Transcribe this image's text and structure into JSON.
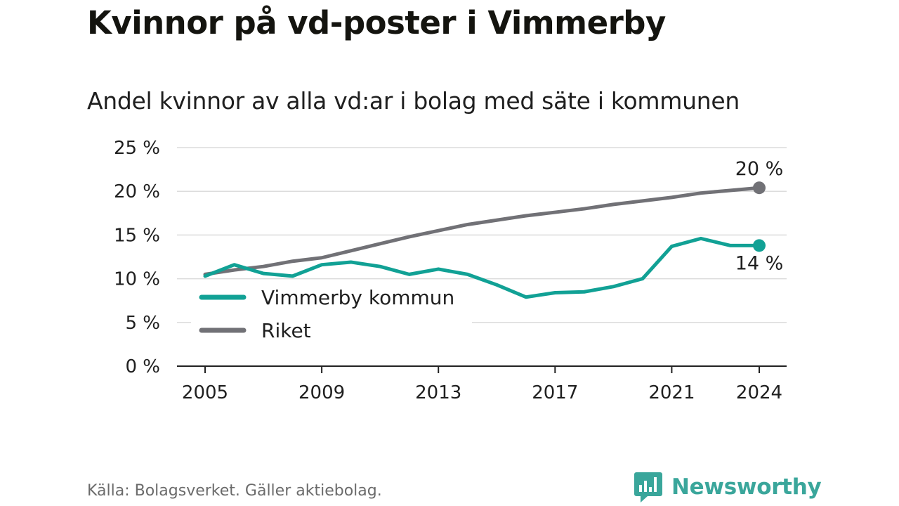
{
  "header": {
    "title": "Kvinnor på vd-poster i Vimmerby",
    "subtitle": "Andel kvinnor av alla vd:ar i bolag med säte i kommunen"
  },
  "footer": {
    "source": "Källa: Bolagsverket. Gäller aktiebolag.",
    "brand": "Newsworthy",
    "brand_icon": "bar-chart-icon",
    "brand_color": "#3aa69b"
  },
  "chart_data": {
    "type": "line",
    "x": [
      2005,
      2006,
      2007,
      2008,
      2009,
      2010,
      2011,
      2012,
      2013,
      2014,
      2015,
      2016,
      2017,
      2018,
      2019,
      2020,
      2021,
      2022,
      2023,
      2024
    ],
    "xticks": [
      2005,
      2009,
      2013,
      2017,
      2021,
      2024
    ],
    "xtick_labels": [
      "2005",
      "2009",
      "2013",
      "2017",
      "2021",
      "2024"
    ],
    "ylim": [
      0,
      25
    ],
    "yticks": [
      0,
      5,
      10,
      15,
      20,
      25
    ],
    "ytick_labels": [
      "0 %",
      "5 %",
      "10 %",
      "15 %",
      "20 %",
      "25 %"
    ],
    "grid": true,
    "legend_position": "bottom-left",
    "series": [
      {
        "name": "Vimmerby kommun",
        "color": "#11a195",
        "values": [
          10.3,
          11.6,
          10.6,
          10.3,
          11.6,
          11.9,
          11.4,
          10.5,
          11.1,
          10.5,
          9.3,
          7.9,
          8.4,
          8.5,
          9.1,
          10.0,
          13.7,
          14.6,
          13.8,
          13.8
        ],
        "end_label": "14 %"
      },
      {
        "name": "Riket",
        "color": "#717176",
        "values": [
          10.5,
          11.0,
          11.4,
          12.0,
          12.4,
          13.2,
          14.0,
          14.8,
          15.5,
          16.2,
          16.7,
          17.2,
          17.6,
          18.0,
          18.5,
          18.9,
          19.3,
          19.8,
          20.1,
          20.4
        ],
        "end_label": "20 %"
      }
    ]
  }
}
